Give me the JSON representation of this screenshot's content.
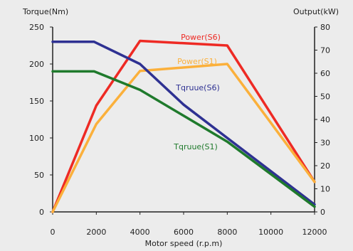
{
  "chart_data": {
    "type": "line",
    "title": "",
    "xlabel": "Motor speed (r.p.m)",
    "ylabel_left": "Torque(Nm)",
    "ylabel_right": "Output(kW)",
    "x_ticks": [
      "0",
      "2000",
      "4000",
      "6000",
      "8000",
      "10000",
      "12000"
    ],
    "y_left_ticks": [
      "0",
      "50",
      "100",
      "150",
      "200",
      "250"
    ],
    "y_right_ticks": [
      "0",
      "10",
      "20",
      "30",
      "40",
      "50",
      "60",
      "70",
      "80"
    ],
    "xlim": [
      0,
      12000
    ],
    "ylim_left": [
      0,
      250
    ],
    "ylim_right": [
      0,
      80
    ],
    "grid": false,
    "series": [
      {
        "name": "Power(S6)",
        "axis": "right",
        "color": "#ee2a24",
        "x": [
          0,
          2000,
          4000,
          8000,
          12000
        ],
        "y": [
          0,
          46,
          74,
          72,
          13
        ]
      },
      {
        "name": "Power(S1)",
        "axis": "right",
        "color": "#fbb03b",
        "x": [
          0,
          2000,
          4000,
          8000,
          12000
        ],
        "y": [
          0,
          38,
          61,
          64,
          13
        ]
      },
      {
        "name": "Tqruue(S6)",
        "axis": "left",
        "color": "#2e3192",
        "x": [
          0,
          1900,
          4000,
          6000,
          8000,
          12000
        ],
        "y": [
          230,
          230,
          200,
          145,
          100,
          10
        ]
      },
      {
        "name": "Tqruue(S1)",
        "axis": "left",
        "color": "#1f7a2c",
        "x": [
          0,
          1900,
          4000,
          6000,
          8000,
          12000
        ],
        "y": [
          190,
          190,
          165,
          130,
          95,
          7
        ]
      }
    ]
  }
}
